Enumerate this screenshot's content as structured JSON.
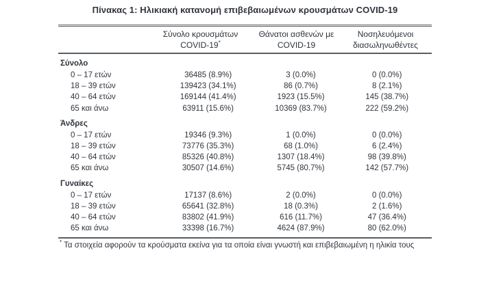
{
  "title": "Πίνακας 1: Ηλικιακή κατανομή επιβεβαιωμένων κρουσμάτων COVID-19",
  "table": {
    "header": {
      "columns": [
        {
          "line1": "Σύνολο κρουσμάτων",
          "line2": "COVID-19",
          "footnote_mark": "*"
        },
        {
          "line1": "Θάνατοι ασθενών με",
          "line2": "COVID-19"
        },
        {
          "line1": "Νοσηλευόμενοι",
          "line2": "διασωληνωθέντες"
        }
      ]
    },
    "sections": [
      {
        "label": "Σύνολο",
        "rows": [
          {
            "age": "0 – 17 ετών",
            "cases": "36485 (8.9%)",
            "deaths": "3 (0.0%)",
            "intubated": "0 (0.0%)"
          },
          {
            "age": "18 – 39 ετών",
            "cases": "139423 (34.1%)",
            "deaths": "86 (0.7%)",
            "intubated": "8 (2.1%)"
          },
          {
            "age": "40 – 64 ετών",
            "cases": "169144 (41.4%)",
            "deaths": "1923 (15.5%)",
            "intubated": "145 (38.7%)"
          },
          {
            "age": "65 και άνω",
            "cases": "63911 (15.6%)",
            "deaths": "10369 (83.7%)",
            "intubated": "222 (59.2%)"
          }
        ]
      },
      {
        "label": "Άνδρες",
        "rows": [
          {
            "age": "0 – 17 ετών",
            "cases": "19346 (9.3%)",
            "deaths": "1 (0.0%)",
            "intubated": "0 (0.0%)"
          },
          {
            "age": "18 – 39 ετών",
            "cases": "73776 (35.3%)",
            "deaths": "68 (1.0%)",
            "intubated": "6 (2.4%)"
          },
          {
            "age": "40 – 64 ετών",
            "cases": "85326 (40.8%)",
            "deaths": "1307 (18.4%)",
            "intubated": "98 (39.8%)"
          },
          {
            "age": "65 και άνω",
            "cases": "30507 (14.6%)",
            "deaths": "5745 (80.7%)",
            "intubated": "142 (57.7%)"
          }
        ]
      },
      {
        "label": "Γυναίκες",
        "rows": [
          {
            "age": "0 – 17 ετών",
            "cases": "17137 (8.6%)",
            "deaths": "2 (0.0%)",
            "intubated": "0 (0.0%)"
          },
          {
            "age": "18 – 39 ετών",
            "cases": "65641 (32.8%)",
            "deaths": "18 (0.3%)",
            "intubated": "2 (1.6%)"
          },
          {
            "age": "40 – 64 ετών",
            "cases": "83802 (41.9%)",
            "deaths": "616 (11.7%)",
            "intubated": "47 (36.4%)"
          },
          {
            "age": "65 και άνω",
            "cases": "33398 (16.7%)",
            "deaths": "4624 (87.9%)",
            "intubated": "80 (62.0%)"
          }
        ]
      }
    ]
  },
  "footnote": {
    "symbol": "*",
    "text": " Τα στοιχεία αφορούν τα κρούσματα εκείνα για τα οποία είναι γνωστή και επιβεβαιωμένη η ηλικία τους"
  },
  "colors": {
    "text": "#2f333c",
    "rule": "#585c63"
  }
}
